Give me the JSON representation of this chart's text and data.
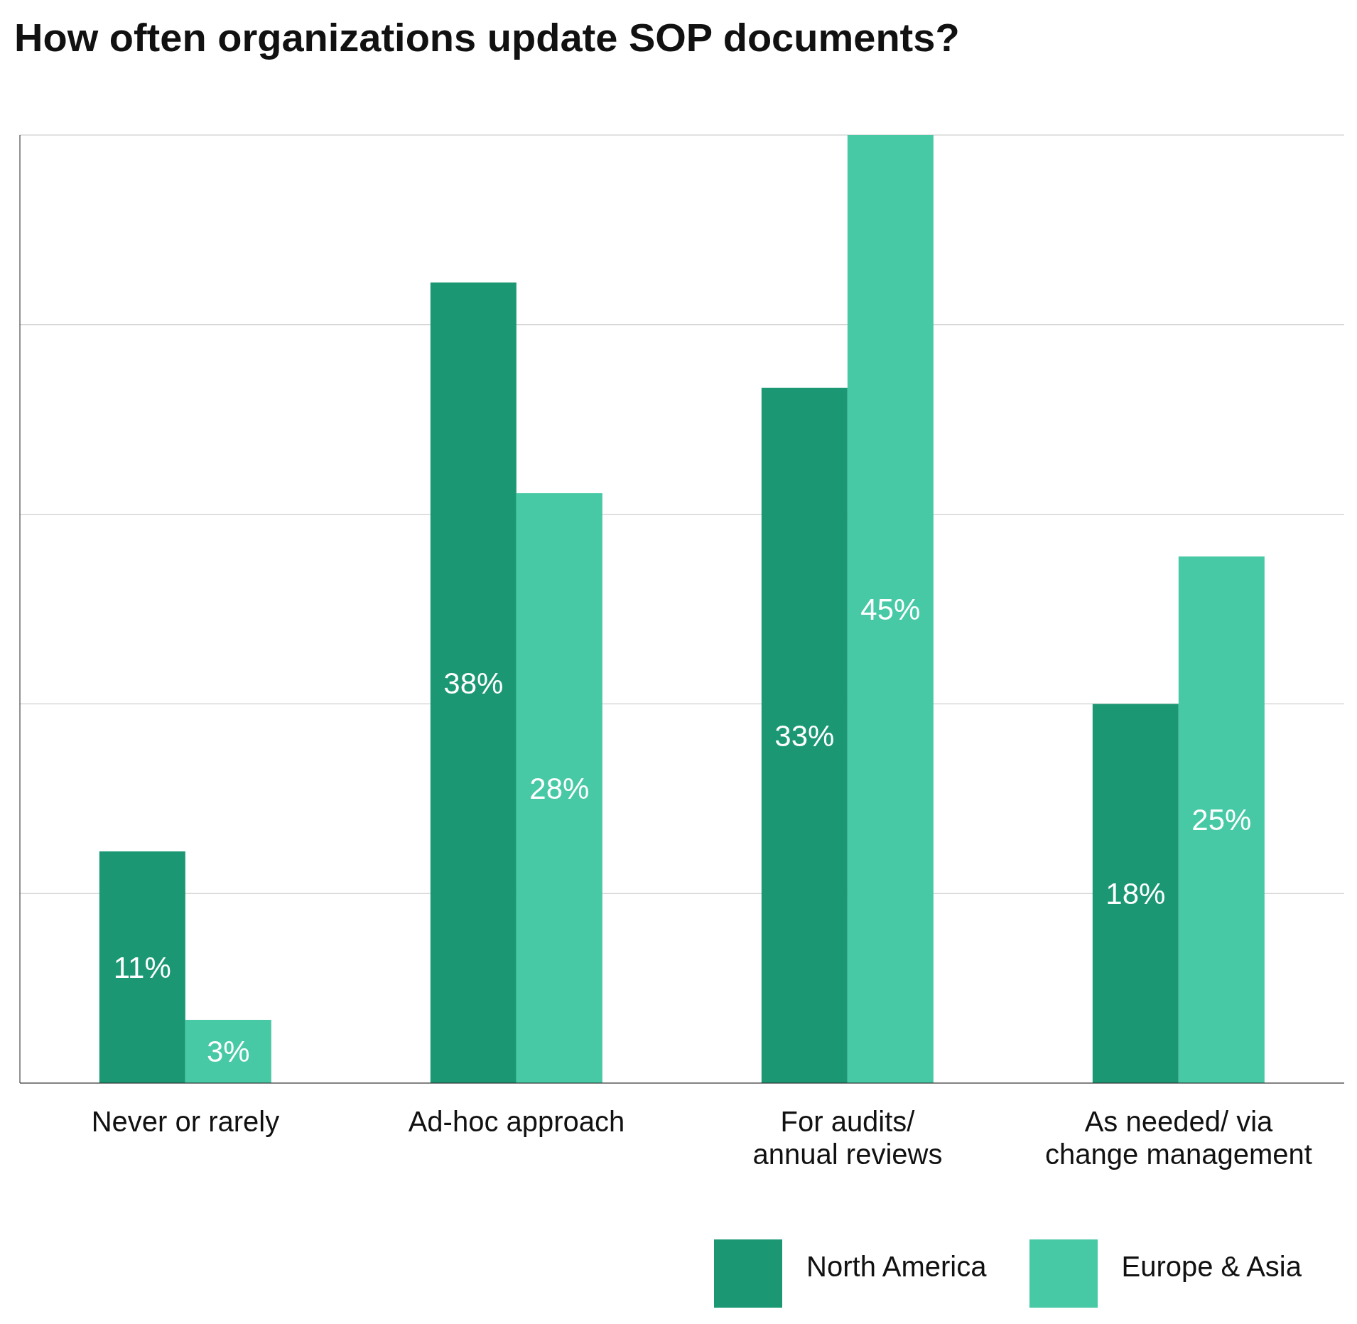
{
  "chart_data": {
    "type": "bar",
    "title": "How often organizations update SOP documents?",
    "categories": [
      "Never or rarely",
      "Ad-hoc approach",
      "For audits/ annual reviews",
      "As needed/ via change management"
    ],
    "series": [
      {
        "name": "North America",
        "color": "#1b9873",
        "values": [
          11,
          38,
          33,
          18
        ],
        "value_labels": [
          "11%",
          "38%",
          "33%",
          "18%"
        ]
      },
      {
        "name": "Europe & Asia",
        "color": "#48c9a6",
        "values": [
          3,
          28,
          45,
          25
        ],
        "value_labels": [
          "3%",
          "28%",
          "45%",
          "25%"
        ]
      }
    ],
    "tick_labels": "x",
    "grid": "y",
    "legend": "bottom right"
  }
}
